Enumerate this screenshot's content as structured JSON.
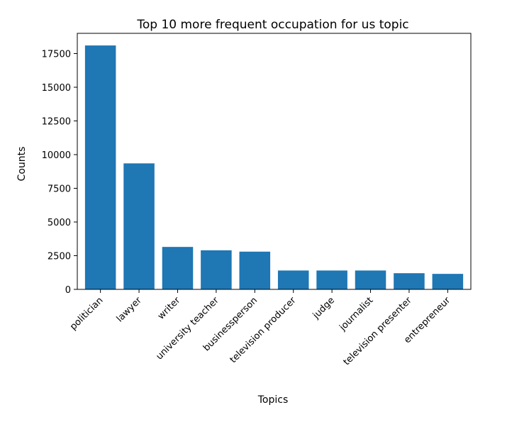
{
  "chart_data": {
    "type": "bar",
    "title": "Top 10 more frequent occupation for us topic",
    "xlabel": "Topics",
    "ylabel": "Counts",
    "categories": [
      "politician",
      "lawyer",
      "writer",
      "university teacher",
      "businessperson",
      "television producer",
      "judge",
      "journalist",
      "television presenter",
      "entrepreneur"
    ],
    "values": [
      18100,
      9350,
      3150,
      2900,
      2800,
      1400,
      1400,
      1400,
      1200,
      1150
    ],
    "yticks": [
      0,
      2500,
      5000,
      7500,
      10000,
      12500,
      15000,
      17500
    ],
    "ylim": [
      0,
      19000
    ],
    "bar_color": "#1f77b4",
    "grid": false,
    "legend": "none"
  }
}
